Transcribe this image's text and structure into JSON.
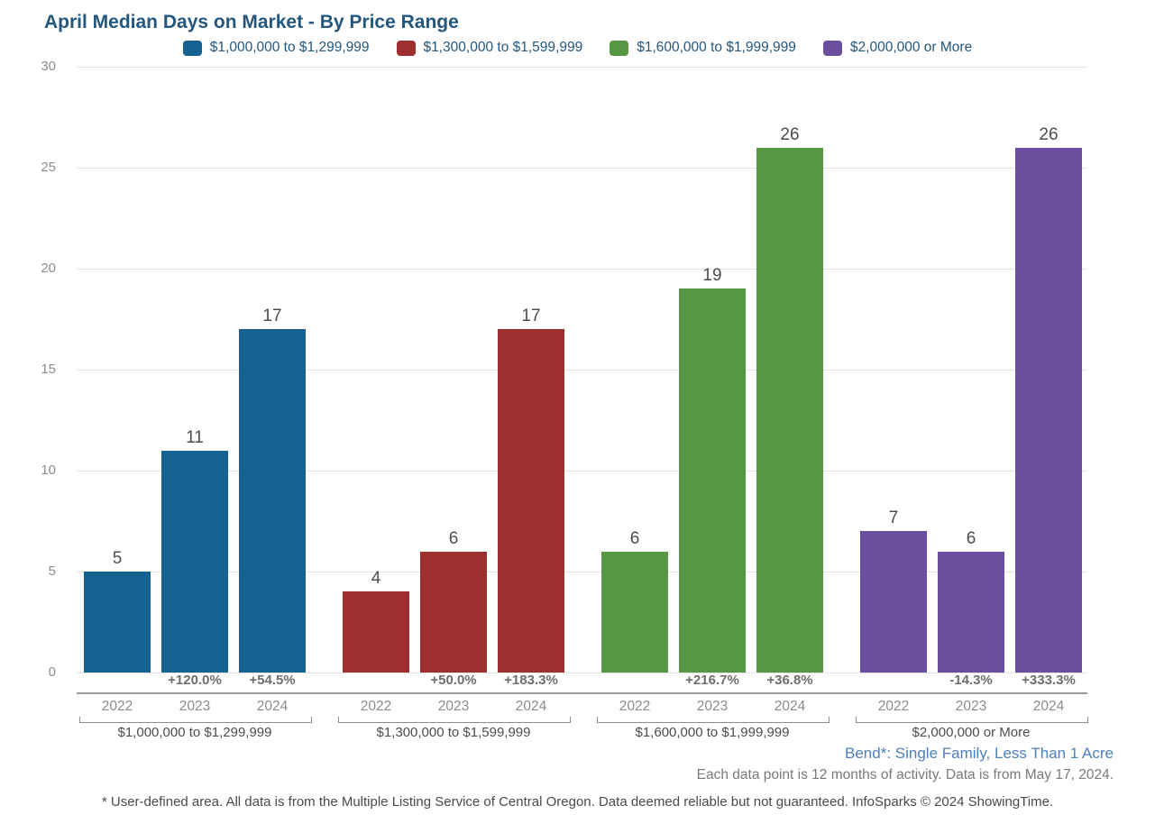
{
  "title": "April Median Days on Market - By Price Range",
  "colors": {
    "title_text": "#24577d",
    "series_blue": "#15618f",
    "series_red": "#9e2f2f",
    "series_green": "#579744",
    "series_purple": "#6c4e9f",
    "area_label_blue": "#4d7fbd",
    "gridline": "#e2e2e2"
  },
  "chart_data": {
    "type": "bar",
    "title": "April Median Days on Market - By Price Range",
    "xlabel": "",
    "ylabel": "",
    "ylim": [
      0,
      30
    ],
    "yticks": [
      0,
      5,
      10,
      15,
      20,
      25,
      30
    ],
    "grid": true,
    "legend_position": "top",
    "categories": [
      "2022",
      "2023",
      "2024"
    ],
    "groups": [
      {
        "label": "$1,000,000 to $1,299,999",
        "color": "#15618f",
        "values": [
          5,
          11,
          17
        ],
        "pct_change": [
          null,
          "+120.0%",
          "+54.5%"
        ]
      },
      {
        "label": "$1,300,000 to $1,599,999",
        "color": "#9e2f2f",
        "values": [
          4,
          6,
          17
        ],
        "pct_change": [
          null,
          "+50.0%",
          "+183.3%"
        ]
      },
      {
        "label": "$1,600,000 to $1,999,999",
        "color": "#579744",
        "values": [
          6,
          19,
          26
        ],
        "pct_change": [
          null,
          "+216.7%",
          "+36.8%"
        ]
      },
      {
        "label": "$2,000,000 or More",
        "color": "#6c4e9f",
        "values": [
          7,
          6,
          26
        ],
        "pct_change": [
          null,
          "-14.3%",
          "+333.3%"
        ]
      }
    ]
  },
  "footer": {
    "area_label": "Bend*: Single Family, Less Than 1 Acre",
    "data_note": "Each data point is 12 months of activity. Data is from May 17, 2024.",
    "disclaimer": "* User-defined area. All data is from the Multiple Listing Service of Central Oregon. Data deemed reliable but not guaranteed. InfoSparks © 2024 ShowingTime."
  }
}
